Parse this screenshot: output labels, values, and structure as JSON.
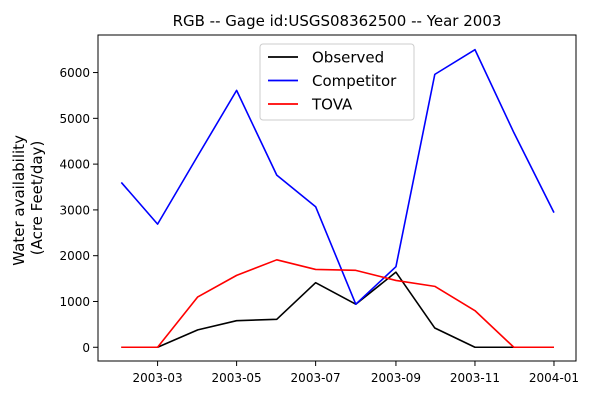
{
  "chart_data": {
    "type": "line",
    "title": "RGB -- Gage id:USGS08362500 -- Year 2003",
    "xlabel": "",
    "ylabel_lines": [
      "Water availability",
      "(Acre Feet/day)"
    ],
    "x": [
      "2003-02-01",
      "2003-03-01",
      "2003-04-01",
      "2003-05-01",
      "2003-06-01",
      "2003-07-01",
      "2003-08-01",
      "2003-09-01",
      "2003-10-01",
      "2003-11-01",
      "2003-12-01",
      "2004-01-01"
    ],
    "xlim": [
      "2003-01-14",
      "2004-01-18"
    ],
    "ylim": [
      -300,
      6820
    ],
    "x_ticks": [
      {
        "date": "2003-03-01",
        "label": "2003-03"
      },
      {
        "date": "2003-05-01",
        "label": "2003-05"
      },
      {
        "date": "2003-07-01",
        "label": "2003-07"
      },
      {
        "date": "2003-09-01",
        "label": "2003-09"
      },
      {
        "date": "2003-11-01",
        "label": "2003-11"
      },
      {
        "date": "2004-01-01",
        "label": "2004-01"
      }
    ],
    "y_ticks": [
      0,
      1000,
      2000,
      3000,
      4000,
      5000,
      6000
    ],
    "grid": false,
    "legend_position": "top-center",
    "series": [
      {
        "name": "Observed",
        "color": "#000000",
        "values": [
          0,
          0,
          380,
          580,
          610,
          1410,
          940,
          1640,
          420,
          0,
          0,
          0
        ]
      },
      {
        "name": "Competitor",
        "color": "#0000ff",
        "values": [
          3600,
          2690,
          4180,
          5610,
          3760,
          3070,
          940,
          1760,
          5960,
          6500,
          4690,
          2940
        ]
      },
      {
        "name": "TOVA",
        "color": "#ff0000",
        "values": [
          0,
          0,
          1100,
          1570,
          1910,
          1700,
          1680,
          1460,
          1330,
          800,
          0,
          0
        ]
      }
    ]
  }
}
